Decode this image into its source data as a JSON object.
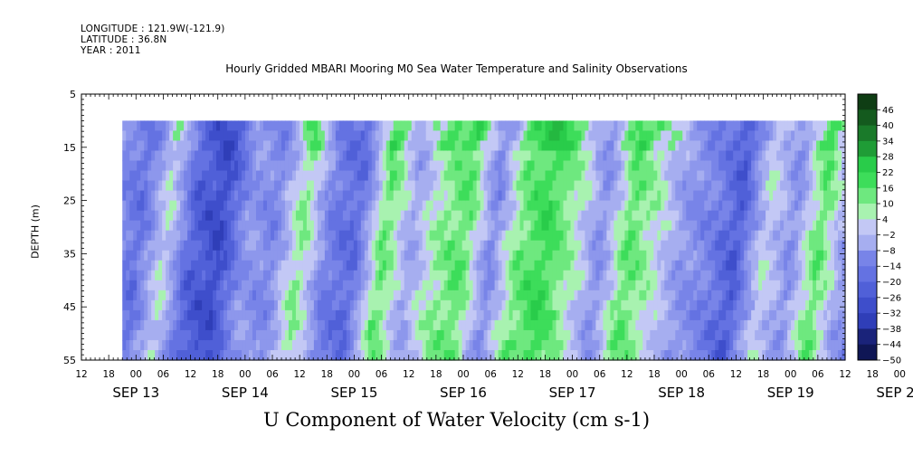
{
  "header": {
    "longitude": "LONGITUDE : 121.9W(-121.9)",
    "latitude": "LATITUDE : 36.8N",
    "year": "YEAR : 2011"
  },
  "chart_data": {
    "type": "heatmap",
    "title": "Hourly Gridded MBARI Mooring M0 Sea Water Temperature and Salinity Observations",
    "xlabel": "U Component of Water Velocity (cm s-1)",
    "ylabel": "DEPTH (m)",
    "x_axis": {
      "hour_ticks": [
        "12",
        "18",
        "00",
        "06",
        "12",
        "18",
        "00",
        "06",
        "12",
        "18",
        "00",
        "06",
        "12",
        "18",
        "00",
        "06",
        "12",
        "18",
        "00",
        "06",
        "12",
        "18",
        "00",
        "06",
        "12",
        "18",
        "00",
        "06",
        "12",
        "18",
        "00",
        "06",
        "12"
      ],
      "date_labels": [
        "SEP 13",
        "SEP 14",
        "SEP 15",
        "SEP 16",
        "SEP 17",
        "SEP 18",
        "SEP 19",
        "SEP 20"
      ],
      "range": [
        "2011-09-13 12:00",
        "2011-09-20 12:00"
      ],
      "data_start": "2011-09-13 21:00"
    },
    "y_axis": {
      "ticks": [
        5,
        15,
        25,
        35,
        45,
        55
      ],
      "range": [
        5,
        55
      ],
      "inverted": true,
      "data_top": 10
    },
    "colorbar": {
      "levels": [
        46,
        40,
        34,
        28,
        22,
        16,
        10,
        4,
        -2,
        -8,
        -14,
        -20,
        -26,
        -32,
        -38,
        -44,
        -50
      ],
      "range": [
        -50,
        52
      ],
      "colors_high": [
        "#0f3d14",
        "#145a1e",
        "#1a7a2a",
        "#1f9c36",
        "#24b840",
        "#29cc4a",
        "#3ddd5a",
        "#6ee87f",
        "#a8f2b0"
      ],
      "colors_low": [
        "#c3c8f5",
        "#a6aef0",
        "#8d97ec",
        "#7884e8",
        "#6472e2",
        "#5060d8",
        "#3e4ecb",
        "#2f3eb8",
        "#24309c",
        "#1a237a",
        "#0f1655"
      ]
    },
    "u_time_pattern": {
      "description_free": true,
      "hours_since_start": [
        0,
        6,
        12,
        18,
        24,
        30,
        36,
        42,
        48,
        54,
        60,
        66,
        72,
        78,
        84,
        90,
        96,
        102,
        108,
        114,
        120,
        126,
        132,
        138,
        144,
        150,
        156,
        162,
        168
      ],
      "u_mid_depth_cm_s": [
        -10,
        -18,
        4,
        -22,
        -28,
        -8,
        -12,
        10,
        -14,
        -20,
        14,
        -6,
        8,
        14,
        -12,
        12,
        18,
        6,
        -10,
        14,
        4,
        -8,
        -14,
        -24,
        4,
        -10,
        14,
        -8,
        -16
      ]
    }
  }
}
